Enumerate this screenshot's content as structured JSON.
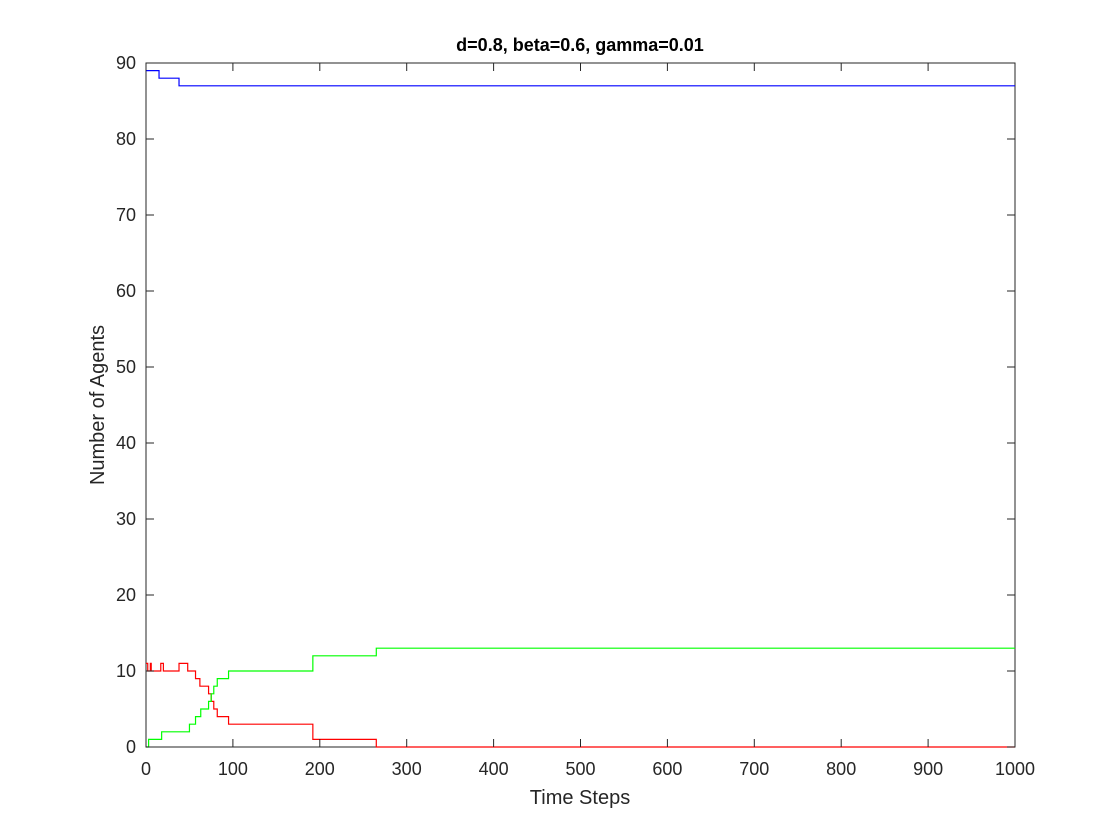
{
  "chart_data": {
    "type": "line",
    "title": "d=0.8, beta=0.6, gamma=0.01",
    "xlabel": "Time Steps",
    "ylabel": "Number of Agents",
    "xlim": [
      0,
      1000
    ],
    "ylim": [
      0,
      90
    ],
    "xticks": [
      0,
      100,
      200,
      300,
      400,
      500,
      600,
      700,
      800,
      900,
      1000
    ],
    "yticks": [
      0,
      10,
      20,
      30,
      40,
      50,
      60,
      70,
      80,
      90
    ],
    "grid": false,
    "legend": "none",
    "series": [
      {
        "color": "#0000ff",
        "points": [
          [
            0,
            89
          ],
          [
            15,
            89
          ],
          [
            15,
            88
          ],
          [
            38,
            88
          ],
          [
            38,
            87
          ],
          [
            1000,
            87
          ]
        ]
      },
      {
        "color": "#ff0000",
        "points": [
          [
            0,
            11
          ],
          [
            2,
            11
          ],
          [
            2,
            10
          ],
          [
            5,
            10
          ],
          [
            5,
            11
          ],
          [
            6,
            11
          ],
          [
            6,
            10
          ],
          [
            17,
            10
          ],
          [
            17,
            11
          ],
          [
            20,
            11
          ],
          [
            20,
            10
          ],
          [
            38,
            10
          ],
          [
            38,
            11
          ],
          [
            48,
            11
          ],
          [
            48,
            10
          ],
          [
            57,
            10
          ],
          [
            57,
            9
          ],
          [
            62,
            9
          ],
          [
            62,
            8
          ],
          [
            72,
            8
          ],
          [
            72,
            7
          ],
          [
            75,
            7
          ],
          [
            75,
            6
          ],
          [
            78,
            6
          ],
          [
            78,
            5
          ],
          [
            82,
            5
          ],
          [
            82,
            4
          ],
          [
            95,
            4
          ],
          [
            95,
            3
          ],
          [
            192,
            3
          ],
          [
            192,
            1
          ],
          [
            265,
            1
          ],
          [
            265,
            0
          ],
          [
            1000,
            0
          ]
        ]
      },
      {
        "color": "#00ff00",
        "points": [
          [
            0,
            0
          ],
          [
            3,
            0
          ],
          [
            3,
            1
          ],
          [
            18,
            1
          ],
          [
            18,
            2
          ],
          [
            50,
            2
          ],
          [
            50,
            3
          ],
          [
            57,
            3
          ],
          [
            57,
            4
          ],
          [
            63,
            4
          ],
          [
            63,
            5
          ],
          [
            72,
            5
          ],
          [
            72,
            6
          ],
          [
            75,
            6
          ],
          [
            75,
            7
          ],
          [
            78,
            7
          ],
          [
            78,
            8
          ],
          [
            82,
            8
          ],
          [
            82,
            9
          ],
          [
            95,
            9
          ],
          [
            95,
            10
          ],
          [
            192,
            10
          ],
          [
            192,
            12
          ],
          [
            265,
            12
          ],
          [
            265,
            13
          ],
          [
            1000,
            13
          ]
        ]
      }
    ]
  }
}
